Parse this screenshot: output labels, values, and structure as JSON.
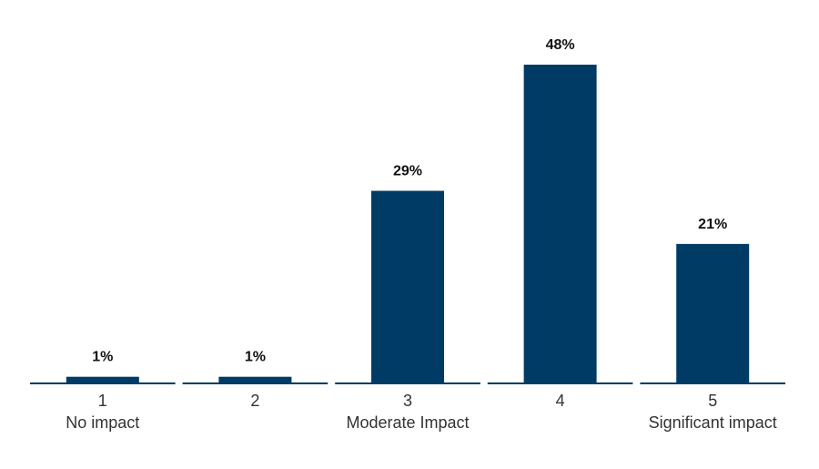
{
  "chart_data": {
    "type": "bar",
    "title": "",
    "xlabel": "",
    "ylabel": "",
    "categories": [
      "1",
      "2",
      "3",
      "4",
      "5"
    ],
    "category_descriptions": [
      "No impact",
      "",
      "Moderate Impact",
      "",
      "Significant impact"
    ],
    "values": [
      1,
      1,
      29,
      48,
      21
    ],
    "data_labels": [
      "1%",
      "1%",
      "29%",
      "48%",
      "21%"
    ],
    "ylim": [
      0,
      50
    ],
    "grid": false,
    "legend": "none",
    "colors": {
      "bar": "#003b66",
      "baseline": "#003b66"
    }
  }
}
